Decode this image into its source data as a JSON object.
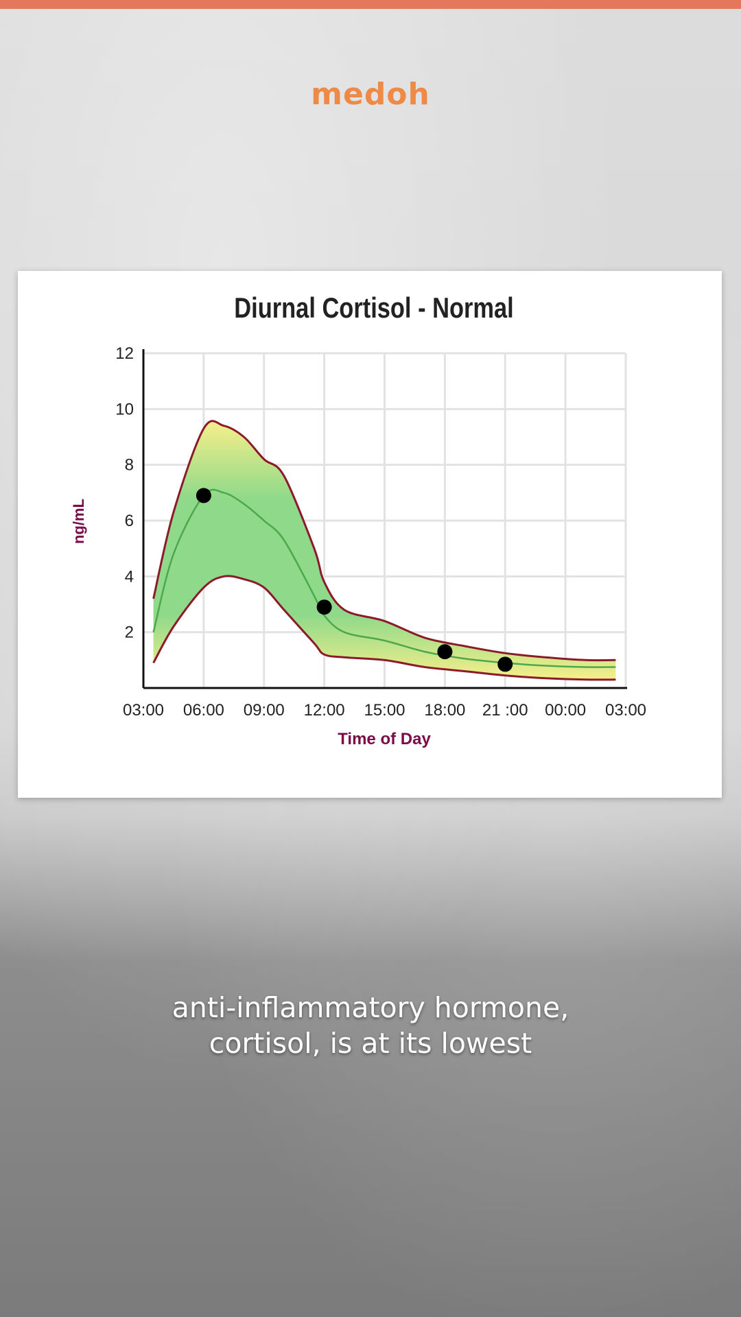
{
  "brand": {
    "name": "medoh"
  },
  "colors": {
    "accent": "#e5775a",
    "brand": "#ee8a48",
    "envelope": "#8b1a2a",
    "curve": "#4ca84c",
    "band_green": "#8fd98a",
    "band_yellow": "#f6ef8a",
    "axis_label": "#7a0b47"
  },
  "caption": {
    "line1": "anti-inflammatory hormone,",
    "line2": "cortisol, is at its lowest"
  },
  "chart_data": {
    "type": "area",
    "title": "Diurnal Cortisol - Normal",
    "xlabel": "Time of Day",
    "ylabel": "ng/mL",
    "x_ticks": [
      "03:00",
      "06:00",
      "09:00",
      "12:00",
      "15:00",
      "18:00",
      "21 :00",
      "00:00",
      "03:00"
    ],
    "y_ticks": [
      2,
      4,
      6,
      8,
      10,
      12
    ],
    "xlim": [
      0,
      24
    ],
    "ylim": [
      0,
      12
    ],
    "grid": true,
    "series": [
      {
        "role": "upper-bound",
        "x": [
          0.5,
          1.5,
          3.0,
          4.0,
          5.0,
          6.0,
          7.0,
          8.5,
          9.0,
          10.0,
          12.0,
          14.0,
          16.0,
          18.0,
          20.0,
          22.0,
          23.5
        ],
        "y": [
          3.2,
          6.3,
          9.3,
          9.4,
          9.0,
          8.2,
          7.6,
          5.0,
          3.8,
          2.8,
          2.4,
          1.8,
          1.5,
          1.25,
          1.1,
          1.0,
          1.0
        ]
      },
      {
        "role": "median",
        "x": [
          0.5,
          1.5,
          3.0,
          4.0,
          5.0,
          6.0,
          7.0,
          8.5,
          9.0,
          10.0,
          12.0,
          14.0,
          16.0,
          18.0,
          20.0,
          22.0,
          23.5
        ],
        "y": [
          2.0,
          4.8,
          6.9,
          7.0,
          6.6,
          6.0,
          5.3,
          3.3,
          2.6,
          2.0,
          1.7,
          1.3,
          1.05,
          0.9,
          0.8,
          0.75,
          0.75
        ]
      },
      {
        "role": "lower-bound",
        "x": [
          0.5,
          1.5,
          3.0,
          4.0,
          5.0,
          6.0,
          7.0,
          8.5,
          9.0,
          10.0,
          12.0,
          14.0,
          16.0,
          18.0,
          20.0,
          22.0,
          23.5
        ],
        "y": [
          0.9,
          2.2,
          3.6,
          4.0,
          3.9,
          3.6,
          2.8,
          1.6,
          1.2,
          1.1,
          1.0,
          0.75,
          0.6,
          0.45,
          0.35,
          0.3,
          0.3
        ]
      }
    ],
    "points": {
      "x": [
        3.0,
        9.0,
        15.0,
        18.0
      ],
      "y": [
        6.9,
        2.9,
        1.3,
        0.85
      ]
    }
  }
}
